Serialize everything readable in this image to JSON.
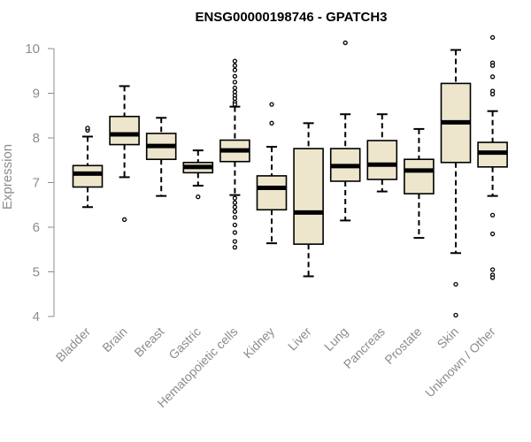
{
  "chart_data": {
    "type": "boxplot",
    "title": "ENSG00000198746 - GPATCH3",
    "xlabel": "",
    "ylabel": "Expression",
    "ylim": [
      4,
      10.3
    ],
    "yticks": [
      4,
      5,
      6,
      7,
      8,
      9,
      10
    ],
    "box_fill": "#ede6cd",
    "outline_color": "#000000",
    "axis_color": "#8c8c8c",
    "grid": false,
    "categories": [
      "Bladder",
      "Brain",
      "Breast",
      "Gastric",
      "Hematopoietic cells",
      "Kidney",
      "Liver",
      "Lung",
      "Pancreas",
      "Prostate",
      "Skin",
      "Unknown / Other"
    ],
    "boxes": [
      {
        "name": "Bladder",
        "whislo": 6.45,
        "q1": 6.9,
        "med": 7.2,
        "q3": 7.38,
        "whishi": 8.03,
        "fliers": [
          8.17,
          8.22
        ]
      },
      {
        "name": "Brain",
        "whislo": 7.12,
        "q1": 7.85,
        "med": 8.08,
        "q3": 8.48,
        "whishi": 9.16,
        "fliers": [
          6.17
        ]
      },
      {
        "name": "Breast",
        "whislo": 6.7,
        "q1": 7.52,
        "med": 7.82,
        "q3": 8.1,
        "whishi": 8.45,
        "fliers": []
      },
      {
        "name": "Gastric",
        "whislo": 6.93,
        "q1": 7.22,
        "med": 7.35,
        "q3": 7.45,
        "whishi": 7.72,
        "fliers": [
          6.68
        ]
      },
      {
        "name": "Hematopoietic cells",
        "whislo": 6.72,
        "q1": 7.47,
        "med": 7.72,
        "q3": 7.95,
        "whishi": 8.7,
        "fliers": [
          9.72,
          9.62,
          9.52,
          9.38,
          9.25,
          9.12,
          9.03,
          8.95,
          8.88,
          8.8,
          8.75,
          6.65,
          6.55,
          6.45,
          6.35,
          6.22,
          6.05,
          5.88,
          5.68,
          5.55
        ]
      },
      {
        "name": "Kidney",
        "whislo": 5.64,
        "q1": 6.39,
        "med": 6.88,
        "q3": 7.15,
        "whishi": 7.8,
        "fliers": [
          8.33,
          8.75
        ]
      },
      {
        "name": "Liver",
        "whislo": 4.9,
        "q1": 5.62,
        "med": 6.33,
        "q3": 7.76,
        "whishi": 8.33,
        "fliers": []
      },
      {
        "name": "Lung",
        "whislo": 6.15,
        "q1": 7.03,
        "med": 7.37,
        "q3": 7.76,
        "whishi": 8.53,
        "fliers": [
          10.13
        ]
      },
      {
        "name": "Pancreas",
        "whislo": 6.8,
        "q1": 7.07,
        "med": 7.4,
        "q3": 7.94,
        "whishi": 8.53,
        "fliers": []
      },
      {
        "name": "Prostate",
        "whislo": 5.76,
        "q1": 6.75,
        "med": 7.27,
        "q3": 7.52,
        "whishi": 8.2,
        "fliers": []
      },
      {
        "name": "Skin",
        "whislo": 5.42,
        "q1": 7.45,
        "med": 8.35,
        "q3": 9.22,
        "whishi": 9.97,
        "fliers": [
          4.72,
          4.03
        ]
      },
      {
        "name": "Unknown / Other",
        "whislo": 6.7,
        "q1": 7.35,
        "med": 7.67,
        "q3": 7.9,
        "whishi": 8.6,
        "fliers": [
          10.25,
          9.68,
          9.62,
          9.37,
          9.05,
          8.98,
          6.27,
          5.85,
          5.05,
          4.93,
          4.87
        ]
      }
    ]
  }
}
